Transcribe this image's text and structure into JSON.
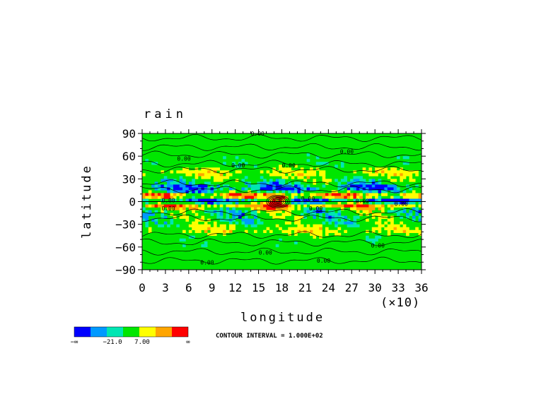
{
  "chart_data": {
    "type": "heatmap",
    "title": "rain",
    "xlabel": "longitude",
    "ylabel": "latitude",
    "x_multiplier_label": "(×10)",
    "xlim": [
      0,
      360
    ],
    "ylim": [
      -90,
      90
    ],
    "x_ticks": [
      "0",
      "3",
      "6",
      "9",
      "12",
      "15",
      "18",
      "21",
      "24",
      "27",
      "30",
      "33",
      "36"
    ],
    "y_ticks": [
      "90",
      "60",
      "30",
      "0",
      "−30",
      "−60",
      "−90"
    ],
    "contour_interval_text": "CONTOUR INTERVAL = 1.000E+02",
    "contour_labels": [
      "0.00"
    ],
    "colorbar": {
      "colors": [
        "#0000ff",
        "#0099ff",
        "#00e6b3",
        "#00e600",
        "#ffff00",
        "#ffa500",
        "#ff0000"
      ],
      "labels": [
        "−∞",
        "−21.0",
        "7.00",
        "∞"
      ]
    },
    "grid": false,
    "legend_position": "bottom-left"
  }
}
